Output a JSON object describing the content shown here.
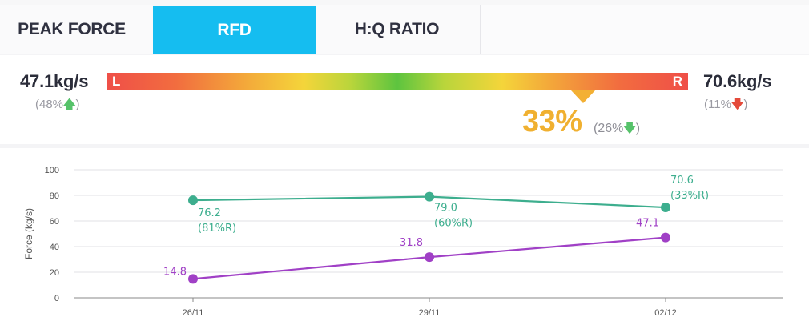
{
  "tabs": [
    {
      "label": "PEAK FORCE",
      "active": false
    },
    {
      "label": "RFD",
      "active": true
    },
    {
      "label": "H:Q RATIO",
      "active": false,
      "icon": "warning-icon"
    }
  ],
  "summary": {
    "left": {
      "value": "47.1kg/s",
      "pct": "(48%",
      "trend": "up",
      "close": ")"
    },
    "right": {
      "value": "70.6kg/s",
      "pct": "(11%",
      "trend": "down",
      "close": ")"
    },
    "bar_left_label": "L",
    "bar_right_label": "R",
    "asymmetry": "33%",
    "asymmetry_change": "(26%",
    "asymmetry_trend": "down",
    "asymmetry_close": ")",
    "marker_level": 0.82,
    "colors": {
      "accent": "#15bdf0",
      "asymmetry": "#f0b030",
      "up": "#56c26a",
      "down": "#e44a3a"
    }
  },
  "chart_data": {
    "type": "line",
    "ylabel": "Force (kg/s)",
    "xlabel": "",
    "ylim": [
      0,
      100
    ],
    "yticks": [
      0,
      20,
      40,
      60,
      80,
      100
    ],
    "categories": [
      "26/11",
      "29/11",
      "02/12"
    ],
    "grid": true,
    "series": [
      {
        "color": "#3dae8e",
        "values": [
          76.2,
          79.0,
          70.6
        ],
        "labels": [
          [
            "76.2",
            "(81%R)"
          ],
          [
            "79.0",
            "(60%R)"
          ],
          [
            "70.6",
            "(33%R)"
          ]
        ]
      },
      {
        "color": "#a040c6",
        "values": [
          14.8,
          31.8,
          47.1
        ],
        "labels": [
          [
            "14.8"
          ],
          [
            "31.8"
          ],
          [
            "47.1"
          ]
        ]
      }
    ]
  }
}
